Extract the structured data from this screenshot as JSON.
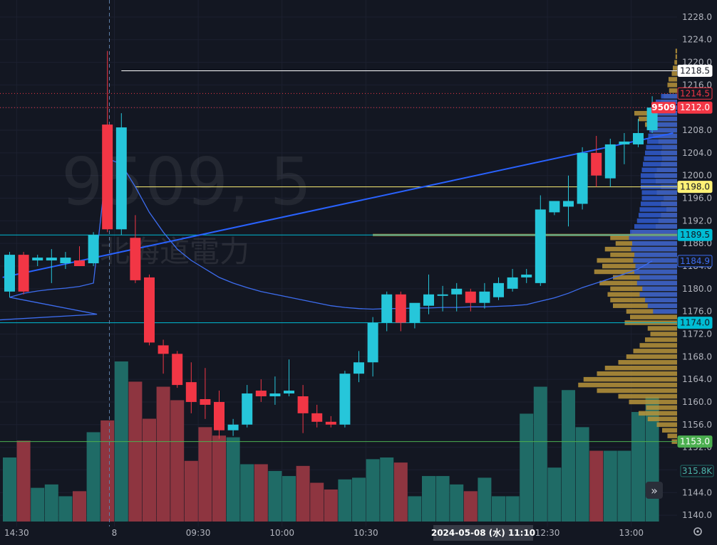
{
  "watermark": {
    "symbol": "9509, 5",
    "name": "北海道電力"
  },
  "colors": {
    "background": "#131722",
    "up": "#26c6da",
    "down": "#f23645",
    "vol_up": "#1f6b66",
    "vol_down": "#8e3540",
    "vwap": "#3d6df0",
    "trendline": "#2962ff",
    "profile": "#b8943a",
    "profile_value_area": "#2f58c7",
    "white_line": "#ffffff",
    "yellow_line": "#fff176",
    "cyan_line": "#00bcd4",
    "green_line": "#4caf50",
    "price_line": "#f23645",
    "grid": "#1c2030",
    "axis_text": "#b2b5be"
  },
  "chart_data": {
    "type": "candlestick",
    "ylim": [
      1138,
      1230
    ],
    "vol_max": 95,
    "yticks": [
      1140,
      1144,
      1148,
      1152,
      1156,
      1160,
      1164,
      1168,
      1172,
      1176,
      1180,
      1184,
      1188,
      1192,
      1196,
      1200,
      1204,
      1208,
      1212,
      1216,
      1220,
      1224,
      1228
    ],
    "yticks_label": [
      "1140.0",
      "1144.0",
      "1148.0",
      "1152.0",
      "1156.0",
      "1160.0",
      "1164.0",
      "1168.0",
      "1172.0",
      "1176.0",
      "1180.0",
      "1184.0",
      "1188.0",
      "1192.0",
      "1196.0",
      "1200.0",
      "1204.0",
      "1208.0",
      "1212.0",
      "1216.0",
      "1220.0",
      "1224.0",
      "1228.0"
    ],
    "xticks": [
      {
        "i": 0.5,
        "label": "14:30"
      },
      {
        "i": 7.5,
        "label": "8"
      },
      {
        "i": 13.5,
        "label": "09:30"
      },
      {
        "i": 19.5,
        "label": "10:00"
      },
      {
        "i": 25.5,
        "label": "10:30"
      },
      {
        "i": 38.5,
        "label": "12:30"
      },
      {
        "i": 44.5,
        "label": "13:00"
      }
    ],
    "crosshair": {
      "i": 7.5,
      "label": "2024-05-08 (水)  11:10"
    },
    "candles": [
      {
        "o": 1179.5,
        "h": 1186.5,
        "l": 1178.5,
        "c": 1186.0
      },
      {
        "o": 1186.0,
        "h": 1186.5,
        "l": 1179.0,
        "c": 1179.5
      },
      {
        "o": 1185.0,
        "h": 1186.0,
        "l": 1184.0,
        "c": 1185.5
      },
      {
        "o": 1185.0,
        "h": 1187.0,
        "l": 1181.0,
        "c": 1185.5
      },
      {
        "o": 1184.5,
        "h": 1186.5,
        "l": 1183.5,
        "c": 1185.5
      },
      {
        "o": 1185.0,
        "h": 1187.5,
        "l": 1184.0,
        "c": 1184.0
      },
      {
        "o": 1184.5,
        "h": 1190.0,
        "l": 1184.0,
        "c": 1189.5
      },
      {
        "o": 1209.0,
        "h": 1222.0,
        "l": 1190.0,
        "c": 1190.5
      },
      {
        "o": 1190.5,
        "h": 1211.0,
        "l": 1189.5,
        "c": 1208.5
      },
      {
        "o": 1189.0,
        "h": 1193.0,
        "l": 1181.0,
        "c": 1181.5
      },
      {
        "o": 1182.0,
        "h": 1182.5,
        "l": 1170.0,
        "c": 1170.5
      },
      {
        "o": 1170.0,
        "h": 1171.0,
        "l": 1165.0,
        "c": 1168.5
      },
      {
        "o": 1168.5,
        "h": 1169.0,
        "l": 1162.5,
        "c": 1163.0
      },
      {
        "o": 1163.5,
        "h": 1167.0,
        "l": 1158.0,
        "c": 1160.0
      },
      {
        "o": 1160.5,
        "h": 1166.0,
        "l": 1157.0,
        "c": 1159.5
      },
      {
        "o": 1160.0,
        "h": 1162.0,
        "l": 1153.5,
        "c": 1155.0
      },
      {
        "o": 1155.0,
        "h": 1157.0,
        "l": 1154.0,
        "c": 1156.0
      },
      {
        "o": 1156.0,
        "h": 1163.0,
        "l": 1155.5,
        "c": 1161.5
      },
      {
        "o": 1162.0,
        "h": 1164.0,
        "l": 1160.0,
        "c": 1161.0
      },
      {
        "o": 1161.0,
        "h": 1164.5,
        "l": 1159.5,
        "c": 1161.5
      },
      {
        "o": 1161.5,
        "h": 1167.5,
        "l": 1161.0,
        "c": 1162.0
      },
      {
        "o": 1161.0,
        "h": 1163.0,
        "l": 1154.5,
        "c": 1158.0
      },
      {
        "o": 1158.0,
        "h": 1159.5,
        "l": 1155.5,
        "c": 1156.5
      },
      {
        "o": 1156.5,
        "h": 1157.5,
        "l": 1155.5,
        "c": 1156.0
      },
      {
        "o": 1156.0,
        "h": 1165.5,
        "l": 1155.5,
        "c": 1165.0
      },
      {
        "o": 1165.0,
        "h": 1169.0,
        "l": 1163.5,
        "c": 1167.0
      },
      {
        "o": 1167.0,
        "h": 1175.0,
        "l": 1164.5,
        "c": 1174.0
      },
      {
        "o": 1174.0,
        "h": 1179.5,
        "l": 1172.5,
        "c": 1179.0
      },
      {
        "o": 1179.0,
        "h": 1179.5,
        "l": 1172.5,
        "c": 1174.0
      },
      {
        "o": 1174.0,
        "h": 1177.0,
        "l": 1173.0,
        "c": 1177.5
      },
      {
        "o": 1177.0,
        "h": 1182.5,
        "l": 1175.5,
        "c": 1179.0
      },
      {
        "o": 1179.0,
        "h": 1180.5,
        "l": 1176.0,
        "c": 1179.0
      },
      {
        "o": 1179.0,
        "h": 1181.0,
        "l": 1176.0,
        "c": 1180.0
      },
      {
        "o": 1179.5,
        "h": 1180.0,
        "l": 1176.0,
        "c": 1177.5
      },
      {
        "o": 1177.5,
        "h": 1181.0,
        "l": 1176.5,
        "c": 1179.5
      },
      {
        "o": 1178.5,
        "h": 1182.0,
        "l": 1178.0,
        "c": 1181.0
      },
      {
        "o": 1180.0,
        "h": 1183.5,
        "l": 1179.5,
        "c": 1182.0
      },
      {
        "o": 1182.0,
        "h": 1183.5,
        "l": 1181.0,
        "c": 1182.5
      },
      {
        "o": 1181.0,
        "h": 1196.5,
        "l": 1180.5,
        "c": 1194.0
      },
      {
        "o": 1193.5,
        "h": 1195.5,
        "l": 1193.0,
        "c": 1195.5
      },
      {
        "o": 1194.5,
        "h": 1200.0,
        "l": 1191.0,
        "c": 1195.5
      },
      {
        "o": 1195.0,
        "h": 1205.0,
        "l": 1194.0,
        "c": 1204.0
      },
      {
        "o": 1204.0,
        "h": 1207.0,
        "l": 1198.0,
        "c": 1200.0
      },
      {
        "o": 1199.5,
        "h": 1206.5,
        "l": 1198.0,
        "c": 1205.5
      },
      {
        "o": 1205.5,
        "h": 1207.5,
        "l": 1202.0,
        "c": 1206.0
      },
      {
        "o": 1205.5,
        "h": 1210.0,
        "l": 1205.0,
        "c": 1207.5
      },
      {
        "o": 1208.0,
        "h": 1214.0,
        "l": 1207.5,
        "c": 1212.0
      }
    ],
    "volumes": [
      38,
      48,
      20,
      22,
      15,
      18,
      53,
      60,
      95,
      83,
      61,
      80,
      72,
      36,
      56,
      51,
      50,
      34,
      34,
      30,
      27,
      33,
      23,
      19,
      25,
      26,
      37,
      38,
      35,
      15,
      27,
      27,
      22,
      18,
      26,
      15,
      15,
      64,
      80,
      32,
      78,
      56,
      42,
      42,
      42,
      65,
      74
    ],
    "vwap": [
      1178.5,
      1179.2,
      1179.6,
      1179.9,
      1180.1,
      1180.4,
      1181.0,
      1203.0,
      1202.0,
      1198.0,
      1193.5,
      1190.0,
      1187.0,
      1185.0,
      1183.5,
      1182.0,
      1181.0,
      1180.2,
      1179.5,
      1179.0,
      1178.5,
      1178.0,
      1177.5,
      1177.0,
      1176.7,
      1176.5,
      1176.4,
      1176.5,
      1176.5,
      1176.6,
      1176.6,
      1176.7,
      1176.7,
      1176.8,
      1176.8,
      1176.9,
      1177.0,
      1177.2,
      1177.8,
      1178.4,
      1179.2,
      1180.2,
      1181.0,
      1181.8,
      1182.6,
      1183.5,
      1184.9
    ],
    "trendline": {
      "from": {
        "i": -0.5,
        "y": 1182.0
      },
      "to": {
        "i": 47.5,
        "y": 1207.5
      }
    },
    "hlines": [
      {
        "y": 1218.5,
        "color_key": "white_line",
        "label": "1218.5",
        "start_i": 8.0
      },
      {
        "y": 1214.5,
        "color_key": "price_line",
        "label": "1214.5",
        "dotted": true,
        "outline": true
      },
      {
        "y": 1212.0,
        "color_key": "price_line",
        "label": "1212.0",
        "dotted": true
      },
      {
        "y": 1198.0,
        "color_key": "yellow_line",
        "label": "1198.0",
        "start_i": 9.0
      },
      {
        "y": 1189.5,
        "color_key": "cyan_line",
        "label": "1189.5"
      },
      {
        "y": 1184.9,
        "color_key": "vwap",
        "label": "1184.9",
        "outline": true,
        "no_line": true
      },
      {
        "y": 1174.0,
        "color_key": "cyan_line",
        "label": "1174.0"
      },
      {
        "y": 1153.0,
        "color_key": "green_line",
        "label": "1153.0"
      }
    ],
    "poc_line": {
      "y": 1189.5,
      "from_i": 26.0
    },
    "price_badge": {
      "label": "9509"
    },
    "volume_label": "315.8K",
    "profile": [
      [
        1153,
        10,
        0
      ],
      [
        1154,
        18,
        0
      ],
      [
        1155,
        28,
        0
      ],
      [
        1156,
        38,
        0
      ],
      [
        1157,
        55,
        0
      ],
      [
        1158,
        72,
        0
      ],
      [
        1159,
        58,
        0
      ],
      [
        1160,
        90,
        0
      ],
      [
        1161,
        110,
        0
      ],
      [
        1162,
        150,
        0
      ],
      [
        1163,
        185,
        0
      ],
      [
        1164,
        175,
        0
      ],
      [
        1165,
        150,
        0
      ],
      [
        1166,
        135,
        0
      ],
      [
        1167,
        110,
        0
      ],
      [
        1168,
        95,
        0
      ],
      [
        1169,
        82,
        0
      ],
      [
        1170,
        70,
        0
      ],
      [
        1171,
        60,
        0
      ],
      [
        1172,
        50,
        0
      ],
      [
        1173,
        55,
        0
      ],
      [
        1174,
        98,
        0
      ],
      [
        1175,
        88,
        0
      ],
      [
        1176,
        95,
        45
      ],
      [
        1177,
        120,
        55
      ],
      [
        1178,
        125,
        60
      ],
      [
        1179,
        130,
        70
      ],
      [
        1180,
        125,
        65
      ],
      [
        1181,
        145,
        75
      ],
      [
        1182,
        120,
        70
      ],
      [
        1183,
        155,
        80
      ],
      [
        1184,
        140,
        78
      ],
      [
        1185,
        150,
        82
      ],
      [
        1186,
        125,
        80
      ],
      [
        1187,
        135,
        86
      ],
      [
        1188,
        115,
        84
      ],
      [
        1189,
        125,
        90
      ],
      [
        1190,
        85,
        88
      ],
      [
        1191,
        40,
        80
      ],
      [
        1192,
        35,
        75
      ],
      [
        1193,
        30,
        72
      ],
      [
        1194,
        20,
        70
      ],
      [
        1195,
        30,
        68
      ],
      [
        1196,
        25,
        66
      ],
      [
        1197,
        38,
        66
      ],
      [
        1198,
        30,
        68
      ],
      [
        1199,
        40,
        68
      ],
      [
        1200,
        42,
        68
      ],
      [
        1201,
        38,
        66
      ],
      [
        1202,
        30,
        64
      ],
      [
        1203,
        28,
        62
      ],
      [
        1204,
        30,
        60
      ],
      [
        1205,
        28,
        58
      ],
      [
        1206,
        35,
        56
      ],
      [
        1207,
        45,
        54
      ],
      [
        1208,
        50,
        52
      ],
      [
        1209,
        60,
        50
      ],
      [
        1210,
        72,
        48
      ],
      [
        1211,
        80,
        46
      ],
      [
        1212,
        40,
        44
      ],
      [
        1213,
        30,
        40
      ],
      [
        1214,
        25,
        30
      ],
      [
        1215,
        15,
        0
      ],
      [
        1216,
        18,
        0
      ],
      [
        1217,
        16,
        0
      ],
      [
        1218,
        10,
        0
      ],
      [
        1219,
        8,
        0
      ],
      [
        1220,
        5,
        0
      ],
      [
        1221,
        3,
        0
      ],
      [
        1222,
        3,
        0
      ]
    ]
  }
}
